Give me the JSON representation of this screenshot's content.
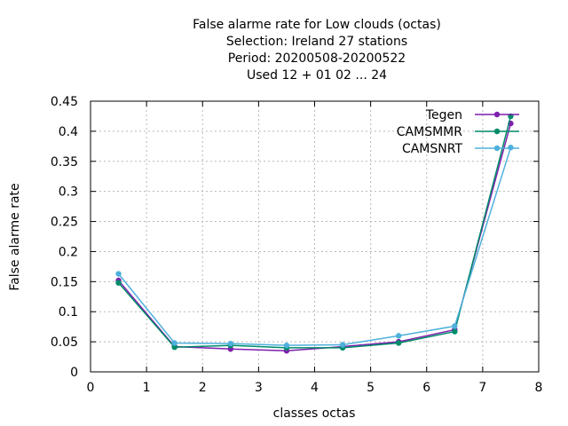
{
  "chart_data": {
    "type": "line",
    "title_lines": [
      "False alarme rate  for Low clouds (octas)",
      "Selection: Ireland     27 stations",
      "Period: 20200508-20200522",
      "Used  12 + 01 02 ... 24"
    ],
    "xlabel": "classes octas",
    "ylabel": "False alarme rate",
    "xlim": [
      0,
      8
    ],
    "ylim": [
      0,
      0.45
    ],
    "xticks": [
      0,
      1,
      2,
      3,
      4,
      5,
      6,
      7,
      8
    ],
    "yticks": [
      0,
      0.05,
      0.1,
      0.15,
      0.2,
      0.25,
      0.3,
      0.35,
      0.4,
      0.45
    ],
    "xtick_labels": [
      "0",
      "1",
      "2",
      "3",
      "4",
      "5",
      "6",
      "7",
      "8"
    ],
    "ytick_labels": [
      "0",
      "0.05",
      "0.1",
      "0.15",
      "0.2",
      "0.25",
      "0.3",
      "0.35",
      "0.4",
      "0.45"
    ],
    "grid": true,
    "legend_position": "top-right",
    "x": [
      0.5,
      1.5,
      2.5,
      3.5,
      4.5,
      5.5,
      6.5,
      7.5
    ],
    "series": [
      {
        "name": "Tegen",
        "color": "#7f1fae",
        "marker": "circle",
        "values": [
          0.152,
          0.042,
          0.038,
          0.035,
          0.042,
          0.05,
          0.07,
          0.413
        ]
      },
      {
        "name": "CAMSMMR",
        "color": "#008b6a",
        "marker": "circle",
        "values": [
          0.148,
          0.041,
          0.044,
          0.04,
          0.04,
          0.048,
          0.067,
          0.425
        ]
      },
      {
        "name": "CAMSNRT",
        "color": "#4fb0dc",
        "marker": "circle",
        "values": [
          0.163,
          0.048,
          0.047,
          0.044,
          0.045,
          0.06,
          0.076,
          0.373
        ]
      }
    ]
  }
}
